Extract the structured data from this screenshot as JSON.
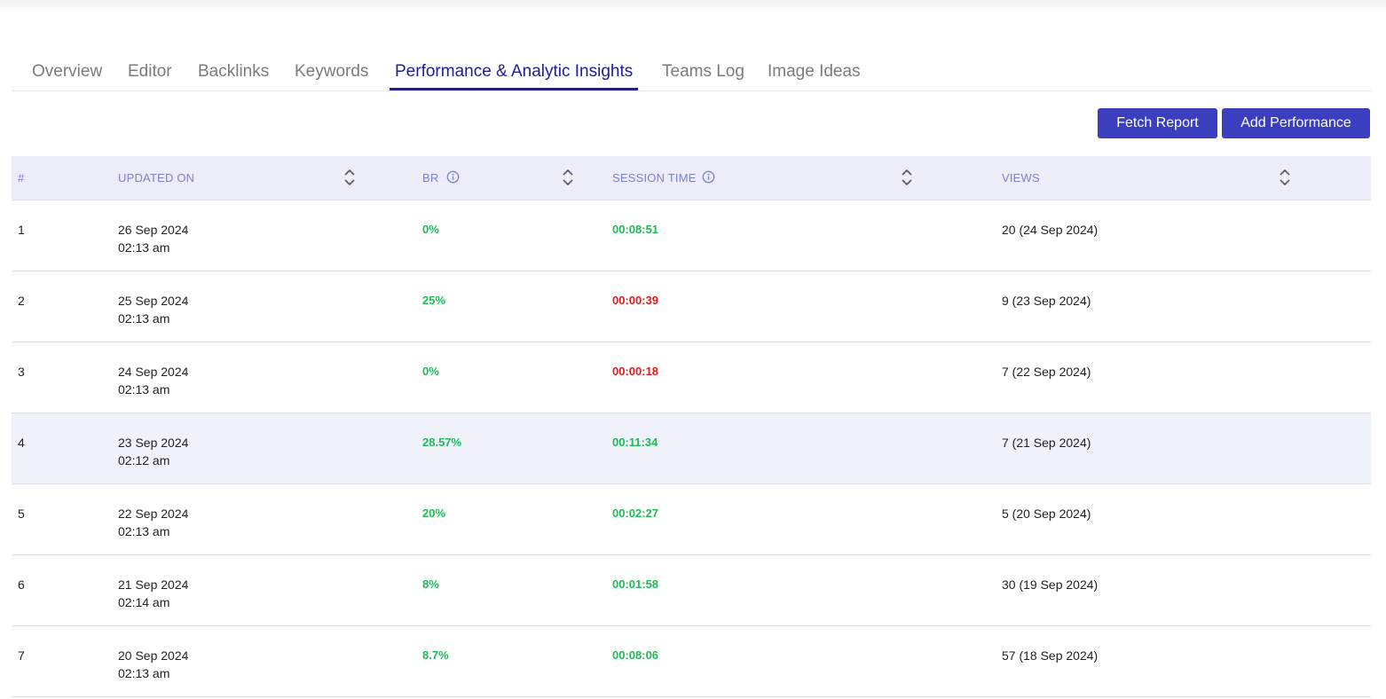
{
  "tabs": [
    {
      "label": "Overview",
      "active": false
    },
    {
      "label": "Editor",
      "active": false
    },
    {
      "label": "Backlinks",
      "active": false
    },
    {
      "label": "Keywords",
      "active": false
    },
    {
      "label": "Performance & Analytic Insights",
      "active": true
    },
    {
      "label": "Teams Log",
      "active": false
    },
    {
      "label": "Image Ideas",
      "active": false
    }
  ],
  "actions": {
    "fetch_report": "Fetch Report",
    "add_performance": "Add Performance"
  },
  "table": {
    "headers": {
      "index": "#",
      "updated_on": "UPDATED ON",
      "br": "BR",
      "session_time": "SESSION TIME",
      "views": "VIEWS"
    },
    "rows": [
      {
        "index": "1",
        "date": "26 Sep 2024",
        "time": "02:13 am",
        "br": "0%",
        "br_status": "green",
        "session": "00:08:51",
        "session_status": "green",
        "views": "20 (24 Sep 2024)"
      },
      {
        "index": "2",
        "date": "25 Sep 2024",
        "time": "02:13 am",
        "br": "25%",
        "br_status": "green",
        "session": "00:00:39",
        "session_status": "red",
        "views": "9 (23 Sep 2024)"
      },
      {
        "index": "3",
        "date": "24 Sep 2024",
        "time": "02:13 am",
        "br": "0%",
        "br_status": "green",
        "session": "00:00:18",
        "session_status": "red",
        "views": "7 (22 Sep 2024)"
      },
      {
        "index": "4",
        "date": "23 Sep 2024",
        "time": "02:12 am",
        "br": "28.57%",
        "br_status": "green",
        "session": "00:11:34",
        "session_status": "green",
        "views": "7 (21 Sep 2024)",
        "highlighted": true
      },
      {
        "index": "5",
        "date": "22 Sep 2024",
        "time": "02:13 am",
        "br": "20%",
        "br_status": "green",
        "session": "00:02:27",
        "session_status": "green",
        "views": "5 (20 Sep 2024)"
      },
      {
        "index": "6",
        "date": "21 Sep 2024",
        "time": "02:14 am",
        "br": "8%",
        "br_status": "green",
        "session": "00:01:58",
        "session_status": "green",
        "views": "30 (19 Sep 2024)"
      },
      {
        "index": "7",
        "date": "20 Sep 2024",
        "time": "02:13 am",
        "br": "8.7%",
        "br_status": "green",
        "session": "00:08:06",
        "session_status": "green",
        "views": "57 (18 Sep 2024)"
      }
    ]
  },
  "colors": {
    "accent": "#1f1d9e",
    "button": "#3b3fbf",
    "good": "#1fba55",
    "bad": "#d91c1c",
    "header_bg": "#ecedf9",
    "header_text": "#7d80c8"
  },
  "icons": [
    "info-icon",
    "sort-icon"
  ]
}
